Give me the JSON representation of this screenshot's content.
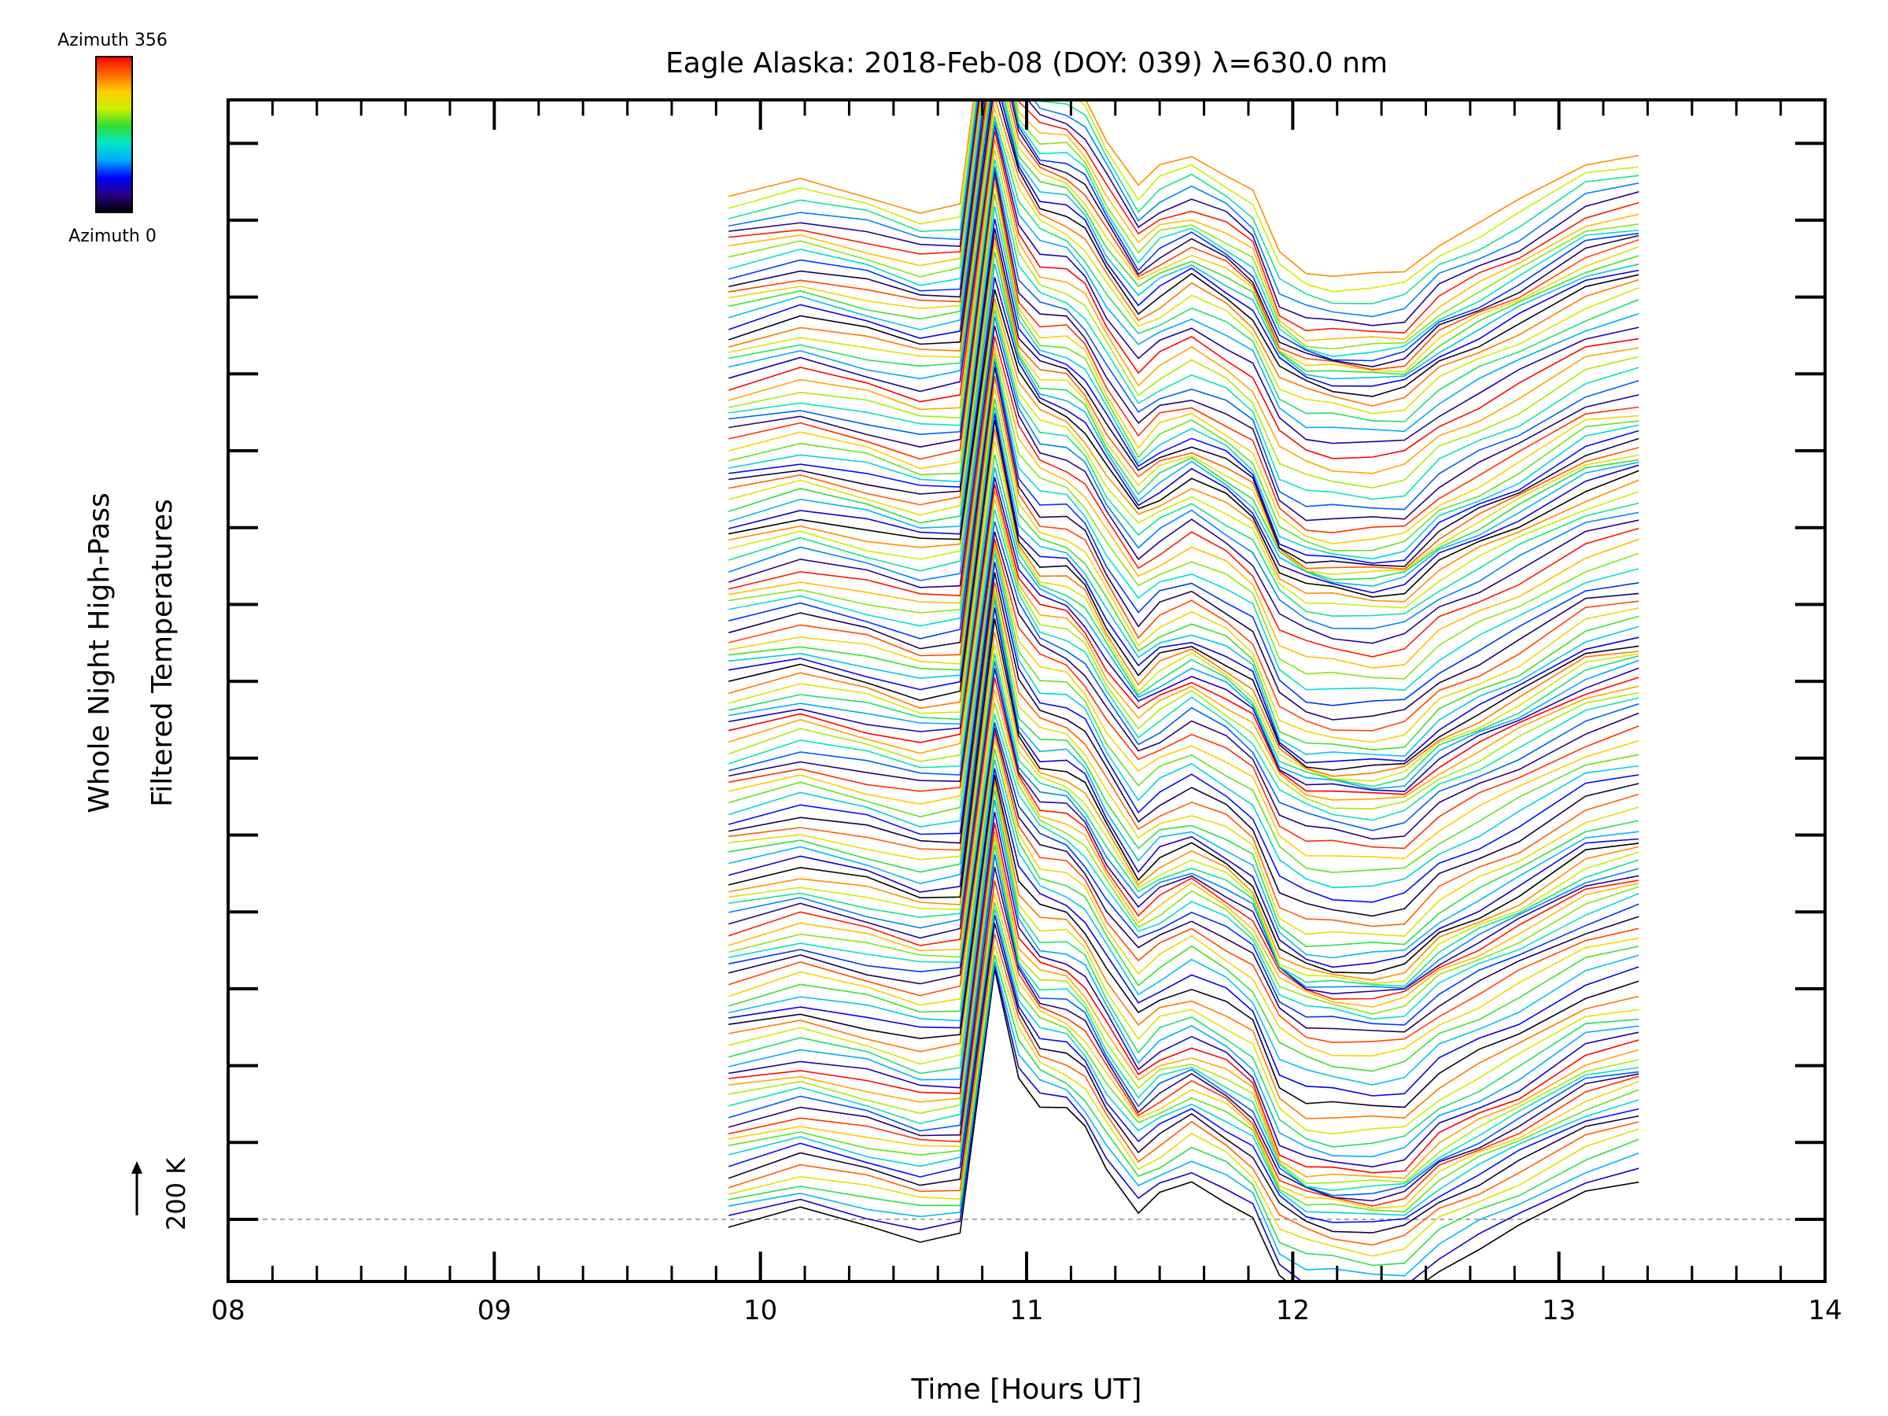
{
  "chart_data": {
    "type": "line",
    "title": "Eagle Alaska: 2018-Feb-08 (DOY: 039) λ=630.0 nm",
    "xlabel": "Time [Hours UT]",
    "ylabel_line1": "Whole Night High-Pass",
    "ylabel_line2": "Filtered Temperatures",
    "xlim": [
      8,
      14
    ],
    "x_ticks": [
      "08",
      "09",
      "10",
      "11",
      "12",
      "13",
      "14"
    ],
    "scale_bar_label": "200 K",
    "colorbar": {
      "top_label": "Azimuth  356",
      "bottom_label": "Azimuth  0",
      "colors": [
        "#000000",
        "#2a0080",
        "#0000ff",
        "#00aaff",
        "#00e6c8",
        "#33dd33",
        "#ccee00",
        "#ffcc00",
        "#ff6600",
        "#ff0000"
      ]
    },
    "series_count": 120,
    "x": [
      9.88,
      10.15,
      10.4,
      10.6,
      10.75,
      10.88,
      10.97,
      11.05,
      11.15,
      11.22,
      11.3,
      11.42,
      11.5,
      11.62,
      11.75,
      11.85,
      11.95,
      12.05,
      12.15,
      12.3,
      12.42,
      12.55,
      12.7,
      12.85,
      13.1,
      13.3
    ],
    "base_profile": [
      0,
      20,
      0,
      -25,
      -20,
      400,
      215,
      175,
      170,
      145,
      85,
      5,
      35,
      50,
      25,
      -5,
      -110,
      -135,
      -140,
      -140,
      -135,
      -85,
      -55,
      -25,
      40,
      55
    ],
    "alt_profile": [
      0,
      30,
      8,
      -10,
      -4,
      380,
      250,
      200,
      186,
      160,
      104,
      40,
      60,
      90,
      60,
      30,
      -48,
      -72,
      -80,
      -88,
      -82,
      -40,
      -10,
      20,
      70,
      95
    ]
  }
}
